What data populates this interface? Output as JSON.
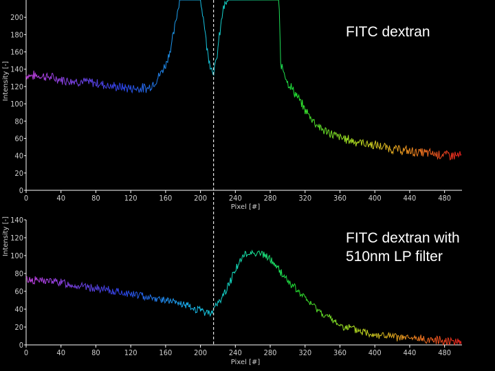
{
  "chart_data": [
    {
      "type": "line",
      "ylabel": "Intensity [-]",
      "xlabel": "Pixel [#]",
      "annotation": "FITC dextran",
      "xlim": [
        0,
        500
      ],
      "ylim": [
        0,
        220
      ],
      "x_ticks": [
        0,
        40,
        80,
        120,
        160,
        200,
        240,
        280,
        320,
        360,
        400,
        440,
        480
      ],
      "y_ticks": [
        0,
        20,
        40,
        60,
        80,
        100,
        120,
        140,
        160,
        180,
        200
      ],
      "vertical_marker_x": 215,
      "series": [
        {
          "x": [
            0,
            20,
            40,
            60,
            80,
            100,
            120,
            140,
            150,
            160,
            166,
            170,
            176,
            200,
            204,
            208,
            212,
            215,
            218,
            222,
            226,
            232,
            290,
            292,
            296,
            300,
            310,
            320,
            330,
            340,
            360,
            380,
            400,
            420,
            440,
            460,
            480,
            500
          ],
          "y": [
            133,
            132,
            128,
            126,
            124,
            120,
            118,
            118,
            128,
            145,
            165,
            185,
            220,
            220,
            195,
            160,
            143,
            137,
            148,
            180,
            210,
            220,
            220,
            145,
            138,
            125,
            110,
            93,
            80,
            70,
            61,
            56,
            52,
            48,
            45,
            43,
            41,
            40
          ]
        }
      ]
    },
    {
      "type": "line",
      "ylabel": "Intensity [-]",
      "xlabel": "Pixel [#]",
      "annotation": "FITC dextran with\n510nm LP filter",
      "xlim": [
        0,
        500
      ],
      "ylim": [
        0,
        140
      ],
      "x_ticks": [
        0,
        40,
        80,
        120,
        160,
        200,
        240,
        280,
        320,
        360,
        400,
        440,
        480
      ],
      "y_ticks": [
        0,
        20,
        40,
        60,
        80,
        100,
        120,
        140
      ],
      "vertical_marker_x": 215,
      "series": [
        {
          "x": [
            0,
            20,
            40,
            60,
            80,
            100,
            120,
            140,
            160,
            180,
            200,
            210,
            215,
            220,
            230,
            240,
            250,
            260,
            270,
            280,
            290,
            300,
            310,
            320,
            340,
            360,
            380,
            400,
            420,
            440,
            460,
            480,
            500
          ],
          "y": [
            73,
            72,
            70,
            66,
            63,
            60,
            57,
            54,
            50,
            45,
            38,
            36,
            40,
            46,
            62,
            85,
            100,
            104,
            102,
            96,
            84,
            72,
            62,
            52,
            35,
            22,
            16,
            12,
            9,
            7,
            6,
            5,
            4
          ]
        }
      ]
    }
  ]
}
